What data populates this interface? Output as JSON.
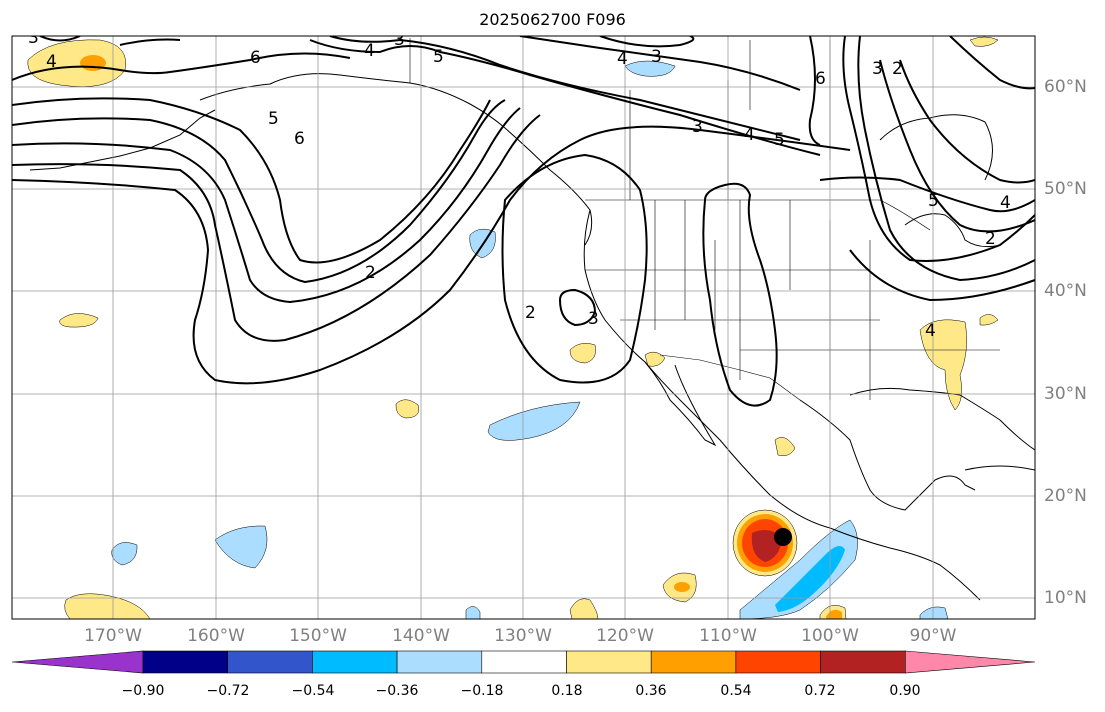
{
  "title": "2025062700 F096",
  "lon_labels": [
    "170°W",
    "160°W",
    "150°W",
    "140°W",
    "130°W",
    "120°W",
    "110°W",
    "100°W",
    "90°W"
  ],
  "lat_labels": [
    "60°N",
    "50°N",
    "40°N",
    "30°N",
    "20°N",
    "10°N"
  ],
  "colorbar": {
    "labels": [
      "−0.90",
      "−0.72",
      "−0.54",
      "−0.36",
      "−0.18",
      "0.18",
      "0.36",
      "0.54",
      "0.72",
      "0.90"
    ],
    "colors": [
      "#9933cc",
      "#000088",
      "#3355cc",
      "#00bbff",
      "#aaddff",
      "#ffffff",
      "#ffe888",
      "#ffa000",
      "#ff4400",
      "#b22222",
      "#ff88aa"
    ]
  },
  "contour_labels": [
    "4",
    "6",
    "5",
    "4",
    "3",
    "4",
    "3",
    "6",
    "3",
    "2",
    "5",
    "4",
    "3",
    "5",
    "6",
    "2",
    "2",
    "3",
    "4",
    "5",
    "4",
    "3",
    "2"
  ],
  "colors": {
    "contour": "#000000",
    "marker": "#000000",
    "grid": "#9a9a9a",
    "coast": "#000000"
  }
}
